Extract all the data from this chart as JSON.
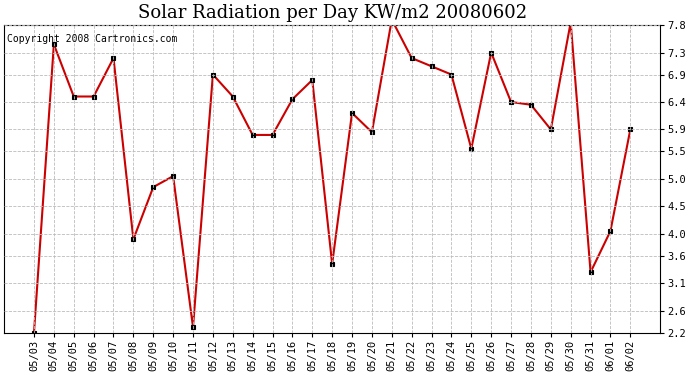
{
  "title": "Solar Radiation per Day KW/m2 20080602",
  "copyright_text": "Copyright 2008 Cartronics.com",
  "dates": [
    "05/03",
    "05/04",
    "05/05",
    "05/06",
    "05/07",
    "05/08",
    "05/09",
    "05/10",
    "05/11",
    "05/12",
    "05/13",
    "05/14",
    "05/15",
    "05/16",
    "05/17",
    "05/18",
    "05/19",
    "05/20",
    "05/21",
    "05/22",
    "05/23",
    "05/24",
    "05/25",
    "05/26",
    "05/27",
    "05/28",
    "05/29",
    "05/30",
    "05/31",
    "06/01",
    "06/02"
  ],
  "values": [
    2.2,
    7.45,
    6.5,
    6.5,
    7.2,
    3.9,
    4.85,
    5.05,
    2.3,
    6.9,
    6.5,
    5.8,
    5.8,
    6.45,
    6.8,
    3.45,
    6.2,
    5.85,
    7.9,
    7.2,
    7.05,
    6.9,
    5.55,
    7.3,
    6.4,
    6.35,
    5.9,
    7.85,
    3.3,
    4.05,
    5.9
  ],
  "line_color": "#cc0000",
  "marker_face_color": "#000000",
  "marker_edge_color": "#000000",
  "background_color": "#ffffff",
  "grid_color": "#bbbbbb",
  "ylim_min": 2.2,
  "ylim_max": 7.8,
  "yticks": [
    2.2,
    2.6,
    3.1,
    3.6,
    4.0,
    4.5,
    5.0,
    5.5,
    5.9,
    6.4,
    6.9,
    7.3,
    7.8
  ],
  "title_fontsize": 13,
  "tick_fontsize": 7.5,
  "copyright_fontsize": 7,
  "figwidth": 6.9,
  "figheight": 3.75,
  "dpi": 100
}
